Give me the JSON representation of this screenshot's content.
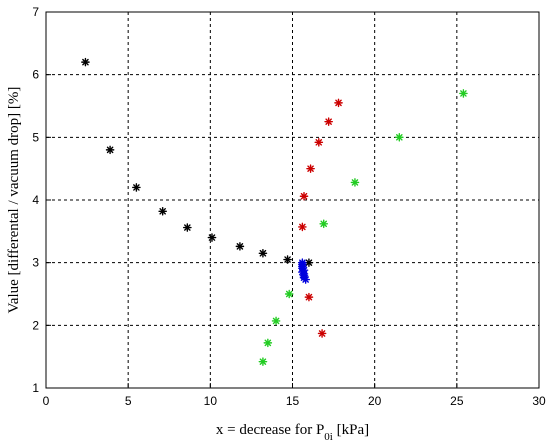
{
  "chart_data": {
    "type": "scatter",
    "title": "",
    "xlabel_main": "x = decrease for P",
    "xlabel_sub": "0i",
    "xlabel_unit": " [kPa]",
    "ylabel": "Value [differental / vacuum drop] [%]",
    "xlim": [
      0,
      30
    ],
    "ylim": [
      1,
      7
    ],
    "x_ticks": [
      "0",
      "5",
      "10",
      "15",
      "20",
      "25",
      "30"
    ],
    "y_ticks": [
      "1",
      "2",
      "3",
      "4",
      "5",
      "6",
      "7"
    ],
    "grid": true,
    "marker": "*",
    "series": [
      {
        "color": "#000000",
        "points": [
          [
            2.4,
            6.2
          ],
          [
            3.9,
            4.8
          ],
          [
            5.5,
            4.2
          ],
          [
            7.1,
            3.82
          ],
          [
            8.6,
            3.56
          ],
          [
            10.1,
            3.4
          ],
          [
            11.8,
            3.26
          ],
          [
            13.2,
            3.15
          ],
          [
            14.7,
            3.05
          ],
          [
            16.0,
            3.0
          ]
        ]
      },
      {
        "color": "#cc0000",
        "points": [
          [
            17.8,
            5.55
          ],
          [
            17.2,
            5.25
          ],
          [
            16.6,
            4.92
          ],
          [
            16.1,
            4.5
          ],
          [
            15.7,
            4.06
          ],
          [
            15.6,
            3.57
          ],
          [
            16.0,
            2.45
          ],
          [
            16.8,
            1.87
          ]
        ]
      },
      {
        "color": "#22cc22",
        "points": [
          [
            25.4,
            5.7
          ],
          [
            21.5,
            5.0
          ],
          [
            18.8,
            4.28
          ],
          [
            16.9,
            3.62
          ],
          [
            14.8,
            2.5
          ],
          [
            14.0,
            2.07
          ],
          [
            13.5,
            1.72
          ],
          [
            13.2,
            1.42
          ]
        ]
      },
      {
        "color": "#0000dd",
        "points": [
          [
            15.6,
            3.0
          ],
          [
            15.6,
            2.97
          ],
          [
            15.6,
            2.94
          ],
          [
            15.6,
            2.91
          ],
          [
            15.7,
            2.88
          ],
          [
            15.6,
            2.85
          ],
          [
            15.7,
            2.82
          ],
          [
            15.7,
            2.79
          ],
          [
            15.7,
            2.76
          ],
          [
            15.8,
            2.73
          ]
        ]
      }
    ]
  }
}
